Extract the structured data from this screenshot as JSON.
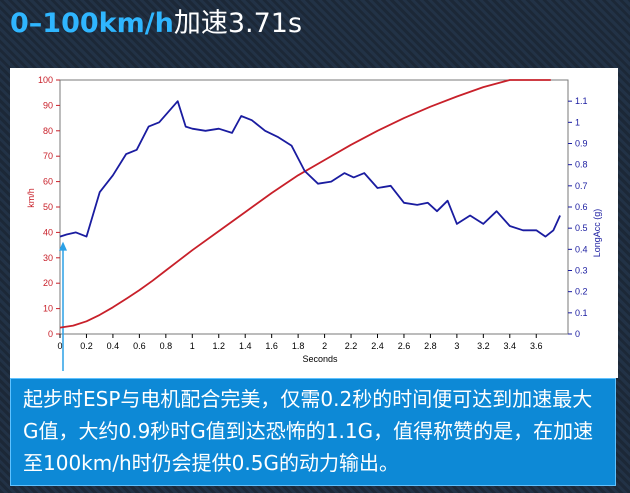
{
  "title": {
    "prefix": "0–100km/h",
    "suffix": "加速3.71s"
  },
  "caption": "起步时ESP与电机配合完美，仅需0.2秒的时间便可达到加速最大G值，大约0.9秒时G值到达恐怖的1.1G，值得称赞的是，在加速至100km/h时仍会提供0.5G的动力输出。",
  "colors": {
    "speed": "#c8202a",
    "accel": "#1a1ca0",
    "marker": "#2aa0e6"
  },
  "chart_data": {
    "type": "line",
    "xlabel": "Seconds",
    "ylabel_left": "km/h",
    "ylabel_right": "LongAcc (g)",
    "xlim": [
      0,
      3.84
    ],
    "ylim_left": [
      0,
      100
    ],
    "ylim_right": [
      0,
      1.2
    ],
    "x_ticks": [
      "0",
      "0.2",
      "0.4",
      "0.6",
      "0.8",
      "1",
      "1.2",
      "1.4",
      "1.6",
      "1.8",
      "2",
      "2.2",
      "2.4",
      "2.6",
      "2.8",
      "3",
      "3.2",
      "3.4",
      "3.6"
    ],
    "y_left_ticks": [
      "0",
      "10",
      "20",
      "30",
      "40",
      "50",
      "60",
      "70",
      "80",
      "90",
      "100"
    ],
    "y_right_ticks": [
      "0",
      "0.1",
      "0.2",
      "0.3",
      "0.4",
      "0.5",
      "0.6",
      "0.7",
      "0.8",
      "0.9",
      "1",
      "1.1"
    ],
    "grid": false,
    "series": [
      {
        "axis": "left",
        "x": [
          0,
          0.1,
          0.2,
          0.3,
          0.4,
          0.5,
          0.6,
          0.7,
          0.8,
          0.9,
          1.0,
          1.2,
          1.4,
          1.6,
          1.8,
          2.0,
          2.2,
          2.4,
          2.6,
          2.8,
          3.0,
          3.2,
          3.4,
          3.6,
          3.71
        ],
        "y": [
          2.5,
          3.3,
          5,
          7.5,
          10.5,
          13.8,
          17.3,
          21,
          25,
          29,
          33,
          40.5,
          48,
          55.5,
          62.5,
          68.5,
          74.5,
          80,
          85,
          89.5,
          93.5,
          97.2,
          100.3,
          103,
          104.5
        ]
      },
      {
        "axis": "right",
        "x": [
          0,
          0.05,
          0.12,
          0.2,
          0.3,
          0.4,
          0.5,
          0.58,
          0.67,
          0.75,
          0.82,
          0.89,
          0.95,
          1.0,
          1.1,
          1.2,
          1.3,
          1.37,
          1.45,
          1.55,
          1.65,
          1.75,
          1.85,
          1.95,
          2.05,
          2.15,
          2.22,
          2.3,
          2.4,
          2.5,
          2.6,
          2.7,
          2.78,
          2.85,
          2.93,
          3.0,
          3.1,
          3.2,
          3.3,
          3.4,
          3.5,
          3.6,
          3.67,
          3.73,
          3.78
        ],
        "y": [
          0.46,
          0.47,
          0.48,
          0.46,
          0.67,
          0.75,
          0.85,
          0.87,
          0.98,
          1.0,
          1.05,
          1.1,
          0.98,
          0.97,
          0.96,
          0.97,
          0.95,
          1.03,
          1.01,
          0.96,
          0.93,
          0.89,
          0.77,
          0.71,
          0.72,
          0.76,
          0.74,
          0.76,
          0.69,
          0.7,
          0.62,
          0.61,
          0.62,
          0.58,
          0.63,
          0.52,
          0.56,
          0.52,
          0.58,
          0.51,
          0.49,
          0.49,
          0.46,
          0.49,
          0.56
        ]
      }
    ]
  }
}
